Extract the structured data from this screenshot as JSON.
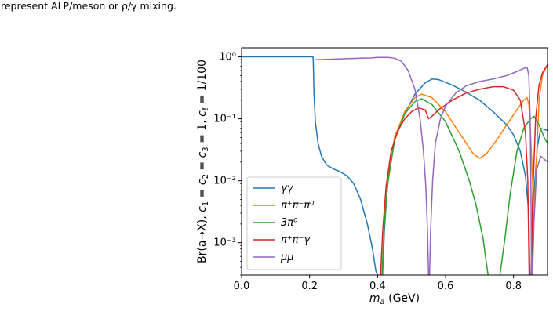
{
  "caption": {
    "line1": "represent ALP/meson or ρ/γ mixing."
  },
  "chart_data": {
    "type": "line",
    "xlabel": "m_a (GeV)",
    "ylabel": "Br(a→X), c1 = c2 = c3 = 1, cℓ = 1/100",
    "xlim": [
      0.0,
      0.9
    ],
    "ylim": [
      0.0003,
      1.4
    ],
    "yscale": "log",
    "xticks": [
      "0.0",
      "0.2",
      "0.4",
      "0.6",
      "0.8"
    ],
    "xtick_values": [
      0.0,
      0.2,
      0.4,
      0.6,
      0.8
    ],
    "yticks": [
      "10⁰",
      "10⁻¹",
      "10⁻²",
      "10⁻³"
    ],
    "ytick_values": [
      1,
      0.1,
      0.01,
      0.001
    ],
    "legend_position": "lower-left",
    "series": [
      {
        "name": "γγ",
        "color": "#1f77b4",
        "points": [
          [
            0.0,
            1.0
          ],
          [
            0.21,
            1.0
          ],
          [
            0.211,
            0.8
          ],
          [
            0.213,
            0.25
          ],
          [
            0.217,
            0.09
          ],
          [
            0.225,
            0.04
          ],
          [
            0.235,
            0.025
          ],
          [
            0.25,
            0.018
          ],
          [
            0.27,
            0.0155
          ],
          [
            0.29,
            0.014
          ],
          [
            0.31,
            0.012
          ],
          [
            0.33,
            0.009
          ],
          [
            0.35,
            0.005
          ],
          [
            0.37,
            0.002
          ],
          [
            0.385,
            0.0008
          ],
          [
            0.395,
            0.00035
          ],
          [
            0.4,
            0.0003
          ]
        ],
        "points2": [
          [
            0.415,
            0.0003
          ],
          [
            0.42,
            0.0015
          ],
          [
            0.43,
            0.01
          ],
          [
            0.45,
            0.045
          ],
          [
            0.48,
            0.12
          ],
          [
            0.51,
            0.25
          ],
          [
            0.54,
            0.38
          ],
          [
            0.56,
            0.44
          ],
          [
            0.58,
            0.43
          ],
          [
            0.62,
            0.35
          ],
          [
            0.66,
            0.27
          ],
          [
            0.7,
            0.2
          ],
          [
            0.74,
            0.13
          ],
          [
            0.78,
            0.08
          ],
          [
            0.8,
            0.055
          ],
          [
            0.82,
            0.03
          ],
          [
            0.835,
            0.012
          ],
          [
            0.845,
            0.003
          ],
          [
            0.848,
            0.0003
          ]
        ],
        "points3": [
          [
            0.852,
            0.0003
          ],
          [
            0.86,
            0.006
          ],
          [
            0.87,
            0.035
          ],
          [
            0.88,
            0.07
          ],
          [
            0.9,
            0.065
          ]
        ]
      },
      {
        "name": "π⁺π⁻π⁰",
        "color": "#ff7f0e",
        "points": [
          [
            0.414,
            0.0003
          ],
          [
            0.42,
            0.002
          ],
          [
            0.43,
            0.01
          ],
          [
            0.45,
            0.05
          ],
          [
            0.48,
            0.13
          ],
          [
            0.51,
            0.22
          ],
          [
            0.53,
            0.25
          ],
          [
            0.56,
            0.22
          ],
          [
            0.6,
            0.13
          ],
          [
            0.64,
            0.06
          ],
          [
            0.68,
            0.028
          ],
          [
            0.7,
            0.023
          ],
          [
            0.72,
            0.027
          ],
          [
            0.75,
            0.045
          ],
          [
            0.78,
            0.08
          ],
          [
            0.81,
            0.14
          ],
          [
            0.83,
            0.2
          ],
          [
            0.84,
            0.22
          ],
          [
            0.845,
            0.17
          ],
          [
            0.85,
            0.06
          ],
          [
            0.856,
            0.01
          ],
          [
            0.86,
            0.003
          ],
          [
            0.865,
            0.01
          ],
          [
            0.875,
            0.2
          ],
          [
            0.885,
            0.5
          ],
          [
            0.9,
            0.75
          ]
        ]
      },
      {
        "name": "3π⁰",
        "color": "#2ca02c",
        "points": [
          [
            0.413,
            0.0003
          ],
          [
            0.42,
            0.002
          ],
          [
            0.43,
            0.009
          ],
          [
            0.45,
            0.045
          ],
          [
            0.48,
            0.12
          ],
          [
            0.51,
            0.19
          ],
          [
            0.53,
            0.21
          ],
          [
            0.56,
            0.17
          ],
          [
            0.6,
            0.09
          ],
          [
            0.64,
            0.03
          ],
          [
            0.67,
            0.01
          ],
          [
            0.69,
            0.004
          ],
          [
            0.71,
            0.0012
          ],
          [
            0.725,
            0.0003
          ]
        ],
        "points2": [
          [
            0.76,
            0.0003
          ],
          [
            0.775,
            0.0012
          ],
          [
            0.79,
            0.006
          ],
          [
            0.81,
            0.03
          ],
          [
            0.83,
            0.07
          ],
          [
            0.85,
            0.1
          ],
          [
            0.86,
            0.11
          ],
          [
            0.875,
            0.08
          ],
          [
            0.89,
            0.05
          ],
          [
            0.9,
            0.04
          ]
        ]
      },
      {
        "name": "π⁺π⁻γ",
        "color": "#d62728",
        "points": [
          [
            0.409,
            0.0003
          ],
          [
            0.415,
            0.0015
          ],
          [
            0.425,
            0.008
          ],
          [
            0.44,
            0.03
          ],
          [
            0.46,
            0.065
          ],
          [
            0.48,
            0.1
          ],
          [
            0.5,
            0.13
          ],
          [
            0.52,
            0.15
          ],
          [
            0.54,
            0.14
          ],
          [
            0.55,
            0.1
          ],
          [
            0.56,
            0.11
          ],
          [
            0.58,
            0.14
          ],
          [
            0.62,
            0.2
          ],
          [
            0.66,
            0.26
          ],
          [
            0.7,
            0.3
          ],
          [
            0.74,
            0.33
          ],
          [
            0.77,
            0.33
          ],
          [
            0.8,
            0.29
          ],
          [
            0.82,
            0.2
          ],
          [
            0.835,
            0.06
          ],
          [
            0.842,
            0.01
          ],
          [
            0.846,
            0.0003
          ]
        ],
        "points2": [
          [
            0.852,
            0.0003
          ],
          [
            0.856,
            0.005
          ],
          [
            0.865,
            0.1
          ],
          [
            0.875,
            0.35
          ],
          [
            0.885,
            0.55
          ],
          [
            0.9,
            0.75
          ]
        ]
      },
      {
        "name": "μμ",
        "color": "#9467bd",
        "points": [
          [
            0.215,
            0.9
          ],
          [
            0.23,
            0.9
          ],
          [
            0.3,
            0.93
          ],
          [
            0.35,
            0.95
          ],
          [
            0.38,
            0.96
          ],
          [
            0.4,
            0.98
          ],
          [
            0.43,
            0.98
          ],
          [
            0.45,
            0.95
          ],
          [
            0.47,
            0.85
          ],
          [
            0.49,
            0.6
          ],
          [
            0.51,
            0.3
          ],
          [
            0.525,
            0.1
          ],
          [
            0.535,
            0.03
          ],
          [
            0.542,
            0.008
          ],
          [
            0.547,
            0.0015
          ],
          [
            0.55,
            0.0003
          ]
        ],
        "points2": [
          [
            0.553,
            0.0003
          ],
          [
            0.556,
            0.0015
          ],
          [
            0.562,
            0.01
          ],
          [
            0.57,
            0.04
          ],
          [
            0.585,
            0.1
          ],
          [
            0.6,
            0.16
          ],
          [
            0.63,
            0.26
          ],
          [
            0.66,
            0.34
          ],
          [
            0.7,
            0.4
          ],
          [
            0.74,
            0.44
          ],
          [
            0.78,
            0.5
          ],
          [
            0.81,
            0.58
          ],
          [
            0.83,
            0.65
          ],
          [
            0.84,
            0.68
          ],
          [
            0.845,
            0.5
          ],
          [
            0.849,
            0.1
          ],
          [
            0.851,
            0.01
          ],
          [
            0.853,
            0.0003
          ]
        ],
        "points3": [
          [
            0.856,
            0.0003
          ],
          [
            0.86,
            0.002
          ],
          [
            0.868,
            0.015
          ],
          [
            0.88,
            0.025
          ],
          [
            0.9,
            0.02
          ]
        ]
      }
    ]
  }
}
